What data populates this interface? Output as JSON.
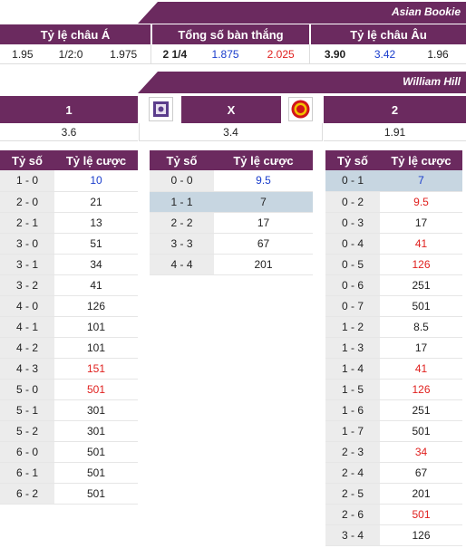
{
  "asian_bookie": {
    "title": "Asian Bookie",
    "headers": [
      "Tỷ lệ châu Á",
      "Tổng số bàn thắng",
      "Tỷ lệ châu Âu"
    ],
    "asian_handicap": [
      "1.95",
      "1/2:0",
      "1.975"
    ],
    "total_goals": [
      "2 1/4",
      "1.875",
      "2.025"
    ],
    "european": [
      "3.90",
      "3.42",
      "1.96"
    ]
  },
  "william_hill": {
    "title": "William Hill",
    "labels": [
      "1",
      "X",
      "2"
    ],
    "odds": [
      "3.6",
      "3.4",
      "1.91"
    ]
  },
  "table_header": {
    "score": "Tỷ số",
    "odds": "Tỷ lệ cược"
  },
  "home_wins": [
    {
      "score": "1 - 0",
      "odds": "10",
      "color": "blue"
    },
    {
      "score": "2 - 0",
      "odds": "21",
      "color": ""
    },
    {
      "score": "2 - 1",
      "odds": "13",
      "color": ""
    },
    {
      "score": "3 - 0",
      "odds": "51",
      "color": ""
    },
    {
      "score": "3 - 1",
      "odds": "34",
      "color": ""
    },
    {
      "score": "3 - 2",
      "odds": "41",
      "color": ""
    },
    {
      "score": "4 - 0",
      "odds": "126",
      "color": ""
    },
    {
      "score": "4 - 1",
      "odds": "101",
      "color": ""
    },
    {
      "score": "4 - 2",
      "odds": "101",
      "color": ""
    },
    {
      "score": "4 - 3",
      "odds": "151",
      "color": "red"
    },
    {
      "score": "5 - 0",
      "odds": "501",
      "color": "red"
    },
    {
      "score": "5 - 1",
      "odds": "301",
      "color": ""
    },
    {
      "score": "5 - 2",
      "odds": "301",
      "color": ""
    },
    {
      "score": "6 - 0",
      "odds": "501",
      "color": ""
    },
    {
      "score": "6 - 1",
      "odds": "501",
      "color": ""
    },
    {
      "score": "6 - 2",
      "odds": "501",
      "color": ""
    }
  ],
  "draws": [
    {
      "score": "0 - 0",
      "odds": "9.5",
      "color": "blue",
      "highlight": false
    },
    {
      "score": "1 - 1",
      "odds": "7",
      "color": "",
      "highlight": true
    },
    {
      "score": "2 - 2",
      "odds": "17",
      "color": "",
      "highlight": false
    },
    {
      "score": "3 - 3",
      "odds": "67",
      "color": "",
      "highlight": false
    },
    {
      "score": "4 - 4",
      "odds": "201",
      "color": "",
      "highlight": false
    }
  ],
  "away_wins": [
    {
      "score": "0 - 1",
      "odds": "7",
      "color": "blue",
      "highlight": true
    },
    {
      "score": "0 - 2",
      "odds": "9.5",
      "color": "red",
      "highlight": false
    },
    {
      "score": "0 - 3",
      "odds": "17",
      "color": "",
      "highlight": false
    },
    {
      "score": "0 - 4",
      "odds": "41",
      "color": "red",
      "highlight": false
    },
    {
      "score": "0 - 5",
      "odds": "126",
      "color": "red",
      "highlight": false
    },
    {
      "score": "0 - 6",
      "odds": "251",
      "color": "",
      "highlight": false
    },
    {
      "score": "0 - 7",
      "odds": "501",
      "color": "",
      "highlight": false
    },
    {
      "score": "1 - 2",
      "odds": "8.5",
      "color": "",
      "highlight": false
    },
    {
      "score": "1 - 3",
      "odds": "17",
      "color": "",
      "highlight": false
    },
    {
      "score": "1 - 4",
      "odds": "41",
      "color": "red",
      "highlight": false
    },
    {
      "score": "1 - 5",
      "odds": "126",
      "color": "red",
      "highlight": false
    },
    {
      "score": "1 - 6",
      "odds": "251",
      "color": "",
      "highlight": false
    },
    {
      "score": "1 - 7",
      "odds": "501",
      "color": "",
      "highlight": false
    },
    {
      "score": "2 - 3",
      "odds": "34",
      "color": "red",
      "highlight": false
    },
    {
      "score": "2 - 4",
      "odds": "67",
      "color": "",
      "highlight": false
    },
    {
      "score": "2 - 5",
      "odds": "201",
      "color": "",
      "highlight": false
    },
    {
      "score": "2 - 6",
      "odds": "501",
      "color": "red",
      "highlight": false
    },
    {
      "score": "3 - 4",
      "odds": "126",
      "color": "",
      "highlight": false
    }
  ],
  "colors": {
    "header_bg": "#6b2a5f",
    "blue": "#1a3dcc",
    "red": "#e0211f",
    "highlight": "#c7d6e1"
  }
}
